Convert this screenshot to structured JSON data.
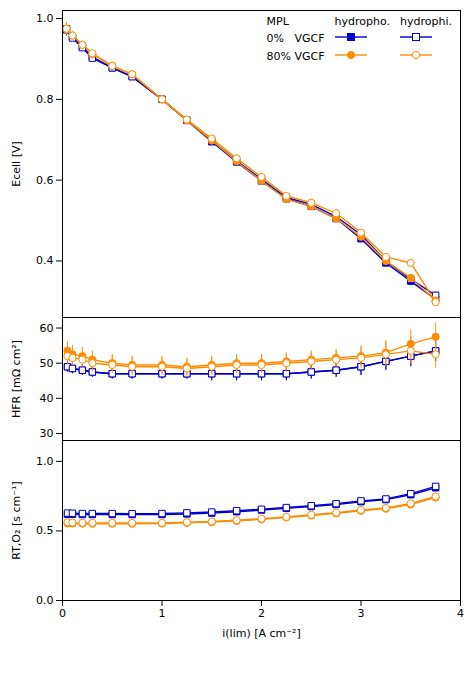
{
  "chart_data": [
    {
      "type": "line",
      "y_label": "Ecell [V]",
      "x": [
        0.04,
        0.1,
        0.2,
        0.3,
        0.5,
        0.7,
        1.0,
        1.25,
        1.5,
        1.75,
        2.0,
        2.25,
        2.5,
        2.75,
        3.0,
        3.25,
        3.5,
        3.75
      ],
      "xlim": [
        0,
        4.0
      ],
      "ylim": [
        0.26,
        1.02
      ],
      "yticks": [
        0.4,
        0.6,
        0.8,
        {
          "value": 1.0,
          "label": "1.0"
        }
      ],
      "tick_labels": "y",
      "legend": "upper right",
      "legend_title": "MPL",
      "series": [
        {
          "group": "0%   VGCF",
          "name": "hydropho.",
          "color": "#0000CC",
          "marker": "square",
          "values": [
            0.975,
            0.955,
            0.93,
            0.905,
            0.878,
            0.857,
            0.8,
            0.748,
            0.695,
            0.645,
            0.598,
            0.554,
            0.535,
            0.505,
            0.455,
            0.395,
            0.35,
            0.305
          ],
          "errors": [
            0.015,
            0.008,
            0.008,
            0.008,
            0.008,
            0.008,
            0.008,
            0.008,
            0.008,
            0.008,
            0.008,
            0.008,
            0.008,
            0.008,
            0.008,
            0.008,
            0.008,
            0.008
          ]
        },
        {
          "group": "0%   VGCF",
          "name": "hydrophi.",
          "color": "#0000CC",
          "marker": "square-open",
          "values": [
            0.972,
            0.952,
            0.928,
            0.902,
            0.878,
            0.856,
            0.8,
            0.748,
            0.698,
            0.648,
            0.602,
            0.557,
            0.54,
            0.51,
            0.465,
            0.4,
            0.355,
            0.315
          ],
          "errors": [
            0.015,
            0.008,
            0.008,
            0.008,
            0.008,
            0.008,
            0.008,
            0.008,
            0.008,
            0.008,
            0.008,
            0.008,
            0.008,
            0.008,
            0.008,
            0.008,
            0.008,
            0.008
          ]
        },
        {
          "group": "80% VGCF",
          "name": "hydropho.",
          "color": "#FF8C00",
          "marker": "circle",
          "values": [
            0.975,
            0.958,
            0.935,
            0.912,
            0.883,
            0.862,
            0.8,
            0.748,
            0.698,
            0.647,
            0.598,
            0.553,
            0.535,
            0.505,
            0.46,
            0.4,
            0.358,
            0.302
          ],
          "errors": [
            0.015,
            0.008,
            0.008,
            0.008,
            0.008,
            0.008,
            0.008,
            0.008,
            0.008,
            0.008,
            0.008,
            0.008,
            0.008,
            0.008,
            0.008,
            0.008,
            0.008,
            0.008
          ]
        },
        {
          "group": "80% VGCF",
          "name": "hydrophi.",
          "color": "#FF8C00",
          "marker": "circle-open",
          "values": [
            0.975,
            0.958,
            0.935,
            0.914,
            0.883,
            0.862,
            0.8,
            0.75,
            0.703,
            0.654,
            0.608,
            0.561,
            0.544,
            0.518,
            0.47,
            0.41,
            0.395,
            0.298
          ],
          "errors": [
            0.015,
            0.008,
            0.008,
            0.008,
            0.008,
            0.008,
            0.008,
            0.008,
            0.008,
            0.008,
            0.008,
            0.008,
            0.008,
            0.008,
            0.008,
            0.008,
            0.008,
            0.008
          ]
        }
      ]
    },
    {
      "type": "line",
      "y_label": "HFR [mΩ cm²]",
      "x": [
        0.05,
        0.1,
        0.2,
        0.3,
        0.5,
        0.7,
        1.0,
        1.25,
        1.5,
        1.75,
        2.0,
        2.25,
        2.5,
        2.75,
        3.0,
        3.25,
        3.5,
        3.75
      ],
      "xlim": [
        0,
        4.0
      ],
      "ylim": [
        28,
        63
      ],
      "yticks": [
        30,
        40,
        50,
        60
      ],
      "tick_labels": "y",
      "series": [
        {
          "group": "0%   VGCF",
          "name": "hydropho.",
          "color": "#0000CC",
          "marker": "square",
          "values": [
            49.0,
            48.5,
            48.0,
            47.5,
            47.0,
            47.0,
            47.0,
            47.0,
            47.0,
            47.0,
            47.0,
            47.0,
            47.5,
            48.0,
            49.0,
            50.5,
            52.0,
            53.5
          ],
          "errors": [
            1.5,
            1.5,
            1.5,
            1.5,
            1.5,
            1.5,
            1.5,
            1.5,
            2.0,
            2.0,
            2.0,
            2.0,
            2.0,
            2.0,
            2.5,
            2.5,
            3.0,
            3.0
          ]
        },
        {
          "group": "0%   VGCF",
          "name": "hydrophi.",
          "color": "#0000CC",
          "marker": "square-open",
          "values": [
            49.0,
            48.5,
            48.0,
            47.5,
            47.0,
            47.0,
            47.0,
            47.0,
            47.0,
            47.0,
            47.0,
            47.0,
            47.5,
            48.0,
            49.0,
            50.5,
            52.0,
            53.5
          ],
          "errors": [
            1.5,
            1.5,
            1.5,
            1.5,
            1.5,
            1.5,
            1.5,
            1.5,
            2.0,
            2.0,
            2.0,
            2.0,
            2.0,
            2.0,
            2.5,
            2.5,
            3.0,
            3.0
          ]
        },
        {
          "group": "80% VGCF",
          "name": "hydropho.",
          "color": "#FF8C00",
          "marker": "circle",
          "values": [
            53.5,
            52.5,
            52.0,
            51.0,
            50.0,
            49.5,
            49.5,
            49.0,
            49.5,
            50.0,
            50.0,
            50.5,
            51.0,
            51.5,
            52.0,
            53.0,
            55.5,
            57.5
          ],
          "errors": [
            2.5,
            2.5,
            2.5,
            2.5,
            2.5,
            2.5,
            2.5,
            2.5,
            2.5,
            2.5,
            2.5,
            2.5,
            2.5,
            2.5,
            3.0,
            3.5,
            4.0,
            4.0
          ]
        },
        {
          "group": "80% VGCF",
          "name": "hydrophi.",
          "color": "#FF8C00",
          "marker": "circle-open",
          "values": [
            52.0,
            51.5,
            51.0,
            50.0,
            49.5,
            49.0,
            49.0,
            48.5,
            49.0,
            49.5,
            49.5,
            50.0,
            50.5,
            51.0,
            51.5,
            52.5,
            53.5,
            52.5
          ],
          "errors": [
            2.5,
            2.5,
            2.5,
            2.5,
            2.5,
            2.5,
            2.5,
            2.5,
            2.5,
            2.5,
            2.5,
            2.5,
            2.5,
            2.5,
            3.0,
            3.5,
            4.0,
            4.0
          ]
        }
      ]
    },
    {
      "type": "line",
      "y_label": "RT,O₂ [s cm⁻¹]",
      "x_label": "i(lim) [A cm⁻²]",
      "x": [
        0.05,
        0.1,
        0.2,
        0.3,
        0.5,
        0.7,
        1.0,
        1.25,
        1.5,
        1.75,
        2.0,
        2.25,
        2.5,
        2.75,
        3.0,
        3.25,
        3.5,
        3.75
      ],
      "xlim": [
        0,
        4.0
      ],
      "xticks": [
        0,
        1,
        2,
        3,
        4
      ],
      "ylim": [
        0.0,
        1.15
      ],
      "yticks": [
        {
          "value": 0.0,
          "label": "0.0"
        },
        0.5,
        {
          "value": 1.0,
          "label": "1.0"
        }
      ],
      "series": [
        {
          "group": "0%   VGCF",
          "name": "hydropho.",
          "color": "#0000CC",
          "marker": "square",
          "values": [
            0.62,
            0.62,
            0.618,
            0.618,
            0.618,
            0.618,
            0.618,
            0.622,
            0.628,
            0.638,
            0.65,
            0.662,
            0.675,
            0.69,
            0.71,
            0.725,
            0.76,
            0.81
          ],
          "errors": [
            0.012,
            0.012,
            0.012,
            0.012,
            0.012,
            0.012,
            0.012,
            0.012,
            0.012,
            0.012,
            0.012,
            0.012,
            0.015,
            0.015,
            0.015,
            0.018,
            0.02,
            0.022
          ]
        },
        {
          "group": "0%   VGCF",
          "name": "hydrophi.",
          "color": "#0000CC",
          "marker": "square-open",
          "values": [
            0.628,
            0.627,
            0.625,
            0.625,
            0.625,
            0.624,
            0.625,
            0.63,
            0.636,
            0.645,
            0.656,
            0.668,
            0.681,
            0.696,
            0.716,
            0.73,
            0.768,
            0.82
          ],
          "errors": [
            0.012,
            0.012,
            0.012,
            0.012,
            0.012,
            0.012,
            0.012,
            0.012,
            0.012,
            0.012,
            0.012,
            0.012,
            0.015,
            0.015,
            0.015,
            0.018,
            0.02,
            0.022
          ]
        },
        {
          "group": "80% VGCF",
          "name": "hydropho.",
          "color": "#FF8C00",
          "marker": "circle",
          "values": [
            0.555,
            0.553,
            0.552,
            0.552,
            0.552,
            0.552,
            0.553,
            0.558,
            0.563,
            0.572,
            0.583,
            0.596,
            0.611,
            0.626,
            0.645,
            0.66,
            0.69,
            0.74
          ],
          "errors": [
            0.01,
            0.01,
            0.01,
            0.01,
            0.01,
            0.01,
            0.01,
            0.01,
            0.01,
            0.01,
            0.01,
            0.01,
            0.012,
            0.012,
            0.012,
            0.015,
            0.018,
            0.02
          ]
        },
        {
          "group": "80% VGCF",
          "name": "hydrophi.",
          "color": "#FF8C00",
          "marker": "circle-open",
          "values": [
            0.562,
            0.56,
            0.558,
            0.558,
            0.558,
            0.558,
            0.558,
            0.562,
            0.568,
            0.577,
            0.588,
            0.601,
            0.616,
            0.631,
            0.65,
            0.665,
            0.698,
            0.748
          ],
          "errors": [
            0.01,
            0.01,
            0.01,
            0.01,
            0.01,
            0.01,
            0.01,
            0.01,
            0.01,
            0.01,
            0.01,
            0.01,
            0.012,
            0.012,
            0.012,
            0.015,
            0.018,
            0.02
          ]
        }
      ]
    }
  ]
}
